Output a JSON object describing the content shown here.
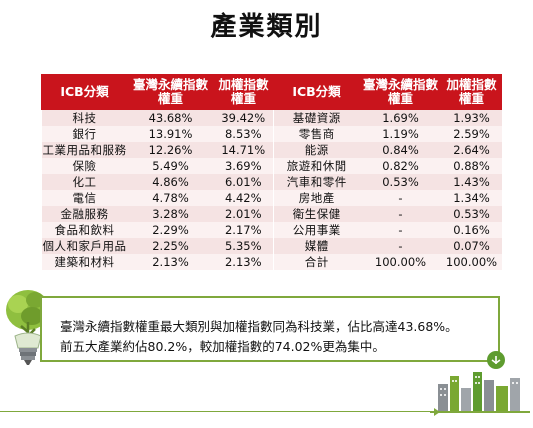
{
  "page": {
    "title": "產業類別"
  },
  "table": {
    "headers": [
      "ICB分類",
      "臺灣永續指數 權重",
      "加權指數 權重",
      "ICB分類",
      "臺灣永續指數 權重",
      "加權指數 權重"
    ],
    "rows": [
      [
        "科技",
        "43.68%",
        "39.42%",
        "基礎資源",
        "1.69%",
        "1.93%"
      ],
      [
        "銀行",
        "13.91%",
        "8.53%",
        "零售商",
        "1.19%",
        "2.59%"
      ],
      [
        "工業用品和服務",
        "12.26%",
        "14.71%",
        "能源",
        "0.84%",
        "2.64%"
      ],
      [
        "保險",
        "5.49%",
        "3.69%",
        "旅遊和休閒",
        "0.82%",
        "0.88%"
      ],
      [
        "化工",
        "4.86%",
        "6.01%",
        "汽車和零件",
        "0.53%",
        "1.43%"
      ],
      [
        "電信",
        "4.78%",
        "4.42%",
        "房地產",
        "-",
        "1.34%"
      ],
      [
        "金融服務",
        "3.28%",
        "2.01%",
        "衛生保健",
        "-",
        "0.53%"
      ],
      [
        "食品和飲料",
        "2.29%",
        "2.17%",
        "公用事業",
        "-",
        "0.16%"
      ],
      [
        "個人和家戶用品",
        "2.25%",
        "5.35%",
        "媒體",
        "-",
        "0.07%"
      ],
      [
        "建築和材料",
        "2.13%",
        "2.13%",
        "合計",
        "100.00%",
        "100.00%"
      ]
    ]
  },
  "note": {
    "line1": "臺灣永續指數權重最大類別與加權指數同為科技業，佔比高達43.68%。",
    "line2": "前五大產業約佔80.2%，較加權指數的74.02%更為集中。"
  },
  "colors": {
    "header_bg": "#c9141c",
    "row_bg": "#f5e3e3",
    "note_border": "#7fa83c"
  },
  "icons": {
    "left": "lightbulb-plant-icon",
    "right": "green-city-icon"
  }
}
